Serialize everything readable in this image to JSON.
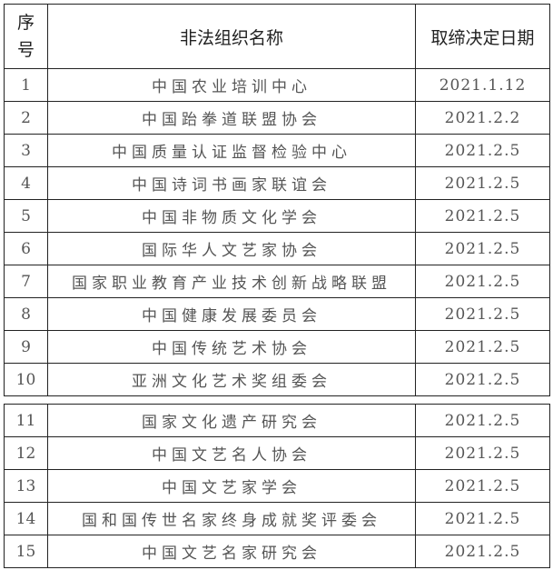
{
  "headers": {
    "index": "序号",
    "name": "非法组织名称",
    "date": "取缔决定日期"
  },
  "rows": [
    {
      "index": "1",
      "name": "中国农业培训中心",
      "date": "2021.1.12"
    },
    {
      "index": "2",
      "name": "中国跆拳道联盟协会",
      "date": "2021.2.2"
    },
    {
      "index": "3",
      "name": "中国质量认证监督检验中心",
      "date": "2021.2.5"
    },
    {
      "index": "4",
      "name": "中国诗词书画家联谊会",
      "date": "2021.2.5"
    },
    {
      "index": "5",
      "name": "中国非物质文化学会",
      "date": "2021.2.5"
    },
    {
      "index": "6",
      "name": "国际华人文艺家协会",
      "date": "2021.2.5"
    },
    {
      "index": "7",
      "name": "国家职业教育产业技术创新战略联盟",
      "date": "2021.2.5"
    },
    {
      "index": "8",
      "name": "中国健康发展委员会",
      "date": "2021.2.5"
    },
    {
      "index": "9",
      "name": "中国传统艺术协会",
      "date": "2021.2.5"
    },
    {
      "index": "10",
      "name": "亚洲文化艺术奖组委会",
      "date": "2021.2.5"
    },
    {
      "index": "11",
      "name": "国家文化遗产研究会",
      "date": "2021.2.5"
    },
    {
      "index": "12",
      "name": "中国文艺名人协会",
      "date": "2021.2.5"
    },
    {
      "index": "13",
      "name": "中国文艺家学会",
      "date": "2021.2.5"
    },
    {
      "index": "14",
      "name": "国和国传世名家终身成就奖评委会",
      "date": "2021.2.5"
    },
    {
      "index": "15",
      "name": "中国文艺名家研究会",
      "date": "2021.2.5"
    }
  ]
}
